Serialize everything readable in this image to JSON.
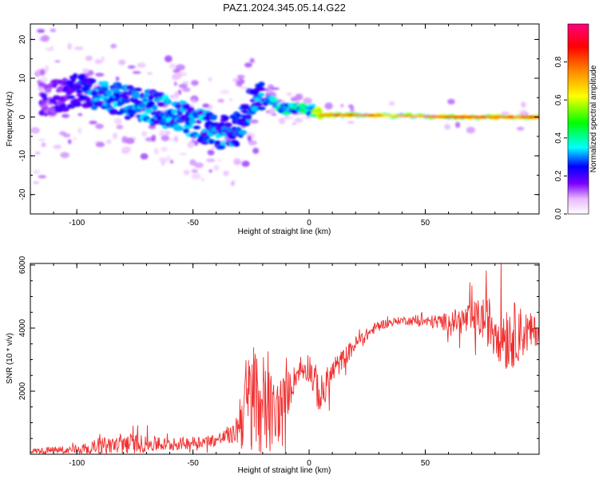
{
  "figure": {
    "title": "PAZ1.2024.345.05.14.G22"
  },
  "chart_data": [
    {
      "type": "heatmap",
      "title": "PAZ1.2024.345.05.14.G22",
      "xlabel": "Height of straight line (km)",
      "ylabel": "Frequency (Hz)",
      "xlim": [
        -120,
        99
      ],
      "ylim": [
        -25,
        24
      ],
      "xticks": [
        "-100",
        "-50",
        "0",
        "50"
      ],
      "yticks": [
        "20",
        "10",
        "0",
        "-10",
        "-20"
      ],
      "colorbar": {
        "label": "Normalized spectral amplitude",
        "range": [
          0,
          1
        ],
        "ticks": [
          "0.0",
          "0.2",
          "0.4",
          "0.6",
          "0.8"
        ],
        "colors": [
          "#ffffff",
          "#7b00ff",
          "#0000ff",
          "#00ffff",
          "#00ff00",
          "#ffff00",
          "#ff7f00",
          "#ff0000",
          "#ff0080"
        ]
      },
      "ridge": [
        {
          "x": -110,
          "f": 5,
          "a": 0.25
        },
        {
          "x": -100,
          "f": 7,
          "a": 0.35
        },
        {
          "x": -90,
          "f": 6,
          "a": 0.45
        },
        {
          "x": -80,
          "f": 4,
          "a": 0.45
        },
        {
          "x": -70,
          "f": 3,
          "a": 0.45
        },
        {
          "x": -60,
          "f": 1,
          "a": 0.45
        },
        {
          "x": -50,
          "f": -1,
          "a": 0.45
        },
        {
          "x": -40,
          "f": -4,
          "a": 0.45
        },
        {
          "x": -30,
          "f": -3,
          "a": 0.4
        },
        {
          "x": -25,
          "f": 4,
          "a": 0.45
        },
        {
          "x": -20,
          "f": 5,
          "a": 0.45
        },
        {
          "x": -10,
          "f": 2,
          "a": 0.6
        },
        {
          "x": 0,
          "f": 2,
          "a": 0.6
        },
        {
          "x": 5,
          "f": 0.5,
          "a": 0.85
        },
        {
          "x": 20,
          "f": 0.5,
          "a": 0.85
        },
        {
          "x": 40,
          "f": 0.3,
          "a": 0.7
        },
        {
          "x": 60,
          "f": 0,
          "a": 0.85
        },
        {
          "x": 80,
          "f": 0,
          "a": 0.9
        },
        {
          "x": 99,
          "f": 0,
          "a": 0.9
        }
      ]
    },
    {
      "type": "line",
      "xlabel": "Height of straight line (km)",
      "ylabel": "SNR (10 * v/v)",
      "xlim": [
        -120,
        99
      ],
      "ylim": [
        0,
        6050
      ],
      "xticks": [
        "-100",
        "-50",
        "0",
        "50"
      ],
      "yticks": [
        "2000",
        "4000",
        "6000"
      ],
      "color": "#f03030",
      "envelope": [
        {
          "x": -120,
          "base": 100,
          "amp": 80
        },
        {
          "x": -100,
          "base": 150,
          "amp": 150
        },
        {
          "x": -80,
          "base": 350,
          "amp": 350
        },
        {
          "x": -60,
          "base": 300,
          "amp": 200
        },
        {
          "x": -40,
          "base": 450,
          "amp": 200
        },
        {
          "x": -32,
          "base": 650,
          "amp": 300
        },
        {
          "x": -28,
          "base": 1500,
          "amp": 1500
        },
        {
          "x": -23,
          "base": 1800,
          "amp": 2000
        },
        {
          "x": -15,
          "base": 1200,
          "amp": 1200
        },
        {
          "x": -10,
          "base": 1800,
          "amp": 800
        },
        {
          "x": -5,
          "base": 2600,
          "amp": 300
        },
        {
          "x": 0,
          "base": 2800,
          "amp": 500
        },
        {
          "x": 5,
          "base": 1800,
          "amp": 700
        },
        {
          "x": 10,
          "base": 2600,
          "amp": 400
        },
        {
          "x": 20,
          "base": 3500,
          "amp": 250
        },
        {
          "x": 30,
          "base": 4100,
          "amp": 150
        },
        {
          "x": 40,
          "base": 4250,
          "amp": 120
        },
        {
          "x": 50,
          "base": 4200,
          "amp": 180
        },
        {
          "x": 60,
          "base": 4200,
          "amp": 300
        },
        {
          "x": 75,
          "base": 4300,
          "amp": 700
        },
        {
          "x": 85,
          "base": 3800,
          "amp": 1200
        },
        {
          "x": 99,
          "base": 3900,
          "amp": 400
        }
      ]
    }
  ]
}
